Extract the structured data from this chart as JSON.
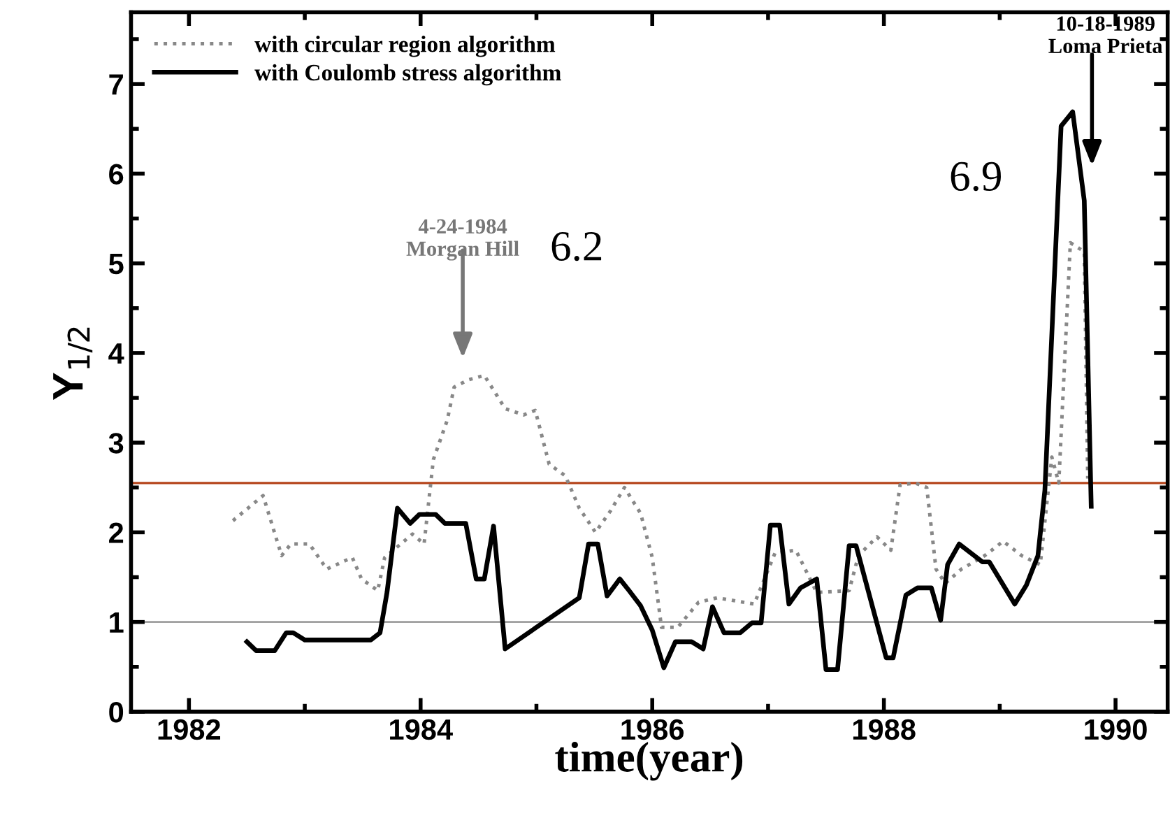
{
  "chart_data": {
    "type": "line",
    "xlabel": "time(year)",
    "ylabel": "Y$_{1/2}$",
    "xlim": [
      1981.5,
      1990.45
    ],
    "xticks": [
      1982,
      1984,
      1986,
      1988,
      1990
    ],
    "ylim": [
      0,
      7.8
    ],
    "yticks": [
      0,
      1,
      2,
      3,
      4,
      5,
      6,
      7
    ],
    "grid": false,
    "legend": "top left",
    "series": [
      {
        "name": "with circular region algorithm",
        "color": "#888888",
        "line_style": "dotted",
        "x": [
          1982.38,
          1982.64,
          1982.8,
          1982.88,
          1983.04,
          1983.19,
          1983.41,
          1983.49,
          1983.63,
          1983.69,
          1983.81,
          1983.93,
          1984.03,
          1984.11,
          1984.23,
          1984.29,
          1984.41,
          1984.55,
          1984.73,
          1984.89,
          1984.99,
          1985.11,
          1985.25,
          1985.37,
          1985.51,
          1985.64,
          1985.76,
          1985.9,
          1986.0,
          1986.08,
          1986.22,
          1986.4,
          1986.56,
          1986.88,
          1987.06,
          1987.24,
          1987.42,
          1987.7,
          1987.78,
          1987.94,
          1988.06,
          1988.14,
          1988.27,
          1988.37,
          1988.45,
          1988.53,
          1988.67,
          1988.87,
          1989.03,
          1989.19,
          1989.35,
          1989.45,
          1989.51,
          1989.61,
          1989.73,
          1989.76
        ],
        "values": [
          2.13,
          2.41,
          1.74,
          1.87,
          1.87,
          1.59,
          1.72,
          1.48,
          1.35,
          1.72,
          1.85,
          1.98,
          1.87,
          2.81,
          3.25,
          3.62,
          3.7,
          3.75,
          3.38,
          3.31,
          3.36,
          2.76,
          2.63,
          2.27,
          2.0,
          2.24,
          2.5,
          2.21,
          1.72,
          0.94,
          0.94,
          1.22,
          1.27,
          1.2,
          1.77,
          1.8,
          1.33,
          1.35,
          1.74,
          1.95,
          1.8,
          2.53,
          2.55,
          2.5,
          1.59,
          1.43,
          1.59,
          1.74,
          1.9,
          1.74,
          1.64,
          2.84,
          2.55,
          5.23,
          5.13,
          2.6
        ]
      },
      {
        "name": "with Coulomb stress algorithm",
        "color": "#000000",
        "line_style": "solid",
        "x": [
          1982.5,
          1982.58,
          1982.74,
          1982.84,
          1982.9,
          1983.0,
          1983.57,
          1983.65,
          1983.71,
          1983.8,
          1983.91,
          1983.99,
          1984.13,
          1984.21,
          1984.39,
          1984.48,
          1984.55,
          1984.63,
          1984.73,
          1985.37,
          1985.45,
          1985.53,
          1985.61,
          1985.72,
          1985.8,
          1985.9,
          1986.0,
          1986.1,
          1986.2,
          1986.34,
          1986.44,
          1986.52,
          1986.62,
          1986.76,
          1986.86,
          1986.94,
          1987.02,
          1987.1,
          1987.18,
          1987.28,
          1987.42,
          1987.5,
          1987.6,
          1987.7,
          1987.76,
          1988.02,
          1988.08,
          1988.19,
          1988.29,
          1988.41,
          1988.49,
          1988.55,
          1988.65,
          1988.85,
          1988.91,
          1989.13,
          1989.23,
          1989.33,
          1989.39,
          1989.53,
          1989.63,
          1989.73,
          1989.79
        ],
        "values": [
          0.78,
          0.68,
          0.68,
          0.88,
          0.88,
          0.8,
          0.8,
          0.88,
          1.33,
          2.27,
          2.1,
          2.2,
          2.2,
          2.1,
          2.1,
          1.48,
          1.48,
          2.07,
          0.7,
          1.27,
          1.87,
          1.87,
          1.29,
          1.48,
          1.35,
          1.18,
          0.91,
          0.49,
          0.78,
          0.78,
          0.7,
          1.17,
          0.88,
          0.88,
          0.99,
          0.99,
          2.08,
          2.08,
          1.2,
          1.38,
          1.48,
          0.47,
          0.47,
          1.85,
          1.85,
          0.6,
          0.6,
          1.3,
          1.38,
          1.38,
          1.02,
          1.64,
          1.87,
          1.67,
          1.67,
          1.2,
          1.41,
          1.74,
          2.47,
          6.53,
          6.69,
          5.7,
          2.29
        ]
      }
    ],
    "ref_lines": [
      {
        "axis": "y",
        "value": 1,
        "color": "#888888"
      },
      {
        "axis": "y",
        "value": 2.55,
        "color": "#b5451b"
      }
    ],
    "annotations": [
      "4-24-1984\nMorgan Hill",
      "6.2",
      "10-18-1989\nLoma Prieta",
      "6.9"
    ]
  }
}
